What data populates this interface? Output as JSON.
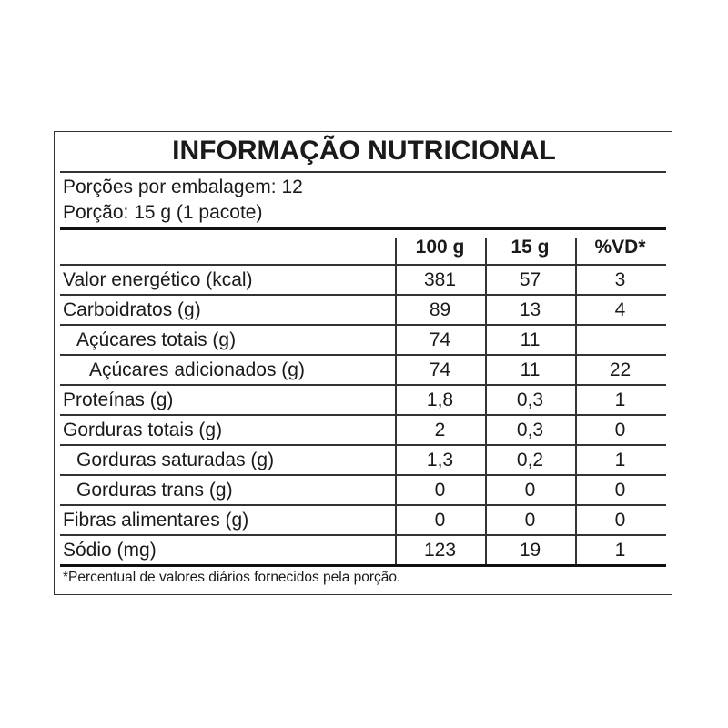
{
  "title": "INFORMAÇÃO NUTRICIONAL",
  "servings_per_package": "Porções por embalagem: 12",
  "serving_size": "Porção: 15 g (1 pacote)",
  "columns": [
    "100 g",
    "15 g",
    "%VD*"
  ],
  "rows": [
    {
      "label": "Valor energético (kcal)",
      "indent": 0,
      "v100": "381",
      "vport": "57",
      "vd": "3"
    },
    {
      "label": "Carboidratos (g)",
      "indent": 0,
      "v100": "89",
      "vport": "13",
      "vd": "4"
    },
    {
      "label": "Açúcares totais (g)",
      "indent": 1,
      "v100": "74",
      "vport": "11",
      "vd": ""
    },
    {
      "label": "Açúcares adicionados (g)",
      "indent": 2,
      "v100": "74",
      "vport": "11",
      "vd": "22"
    },
    {
      "label": "Proteínas (g)",
      "indent": 0,
      "v100": "1,8",
      "vport": "0,3",
      "vd": "1"
    },
    {
      "label": "Gorduras totais (g)",
      "indent": 0,
      "v100": "2",
      "vport": "0,3",
      "vd": "0"
    },
    {
      "label": "Gorduras saturadas (g)",
      "indent": 1,
      "v100": "1,3",
      "vport": "0,2",
      "vd": "1"
    },
    {
      "label": "Gorduras trans (g)",
      "indent": 1,
      "v100": "0",
      "vport": "0",
      "vd": "0"
    },
    {
      "label": "Fibras alimentares (g)",
      "indent": 0,
      "v100": "0",
      "vport": "0",
      "vd": "0"
    },
    {
      "label": "Sódio (mg)",
      "indent": 0,
      "v100": "123",
      "vport": "19",
      "vd": "1"
    }
  ],
  "footnote": "*Percentual de valores diários fornecidos pela porção."
}
